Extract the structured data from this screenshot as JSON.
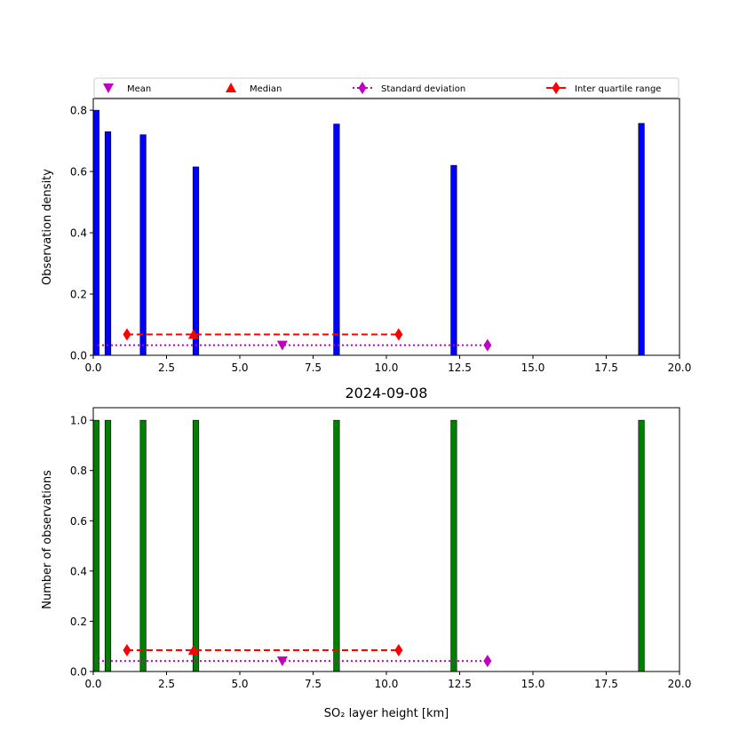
{
  "figure": {
    "title": "2024-09-08",
    "background": "#ffffff"
  },
  "legend": {
    "placement": "top, horizontal, above upper plot",
    "entries": [
      {
        "label": "Mean",
        "marker": "triangle-down",
        "color": "#bf00bf",
        "line": "none"
      },
      {
        "label": "Median",
        "marker": "triangle-up",
        "color": "#ff0000",
        "line": "none"
      },
      {
        "label": "Standard deviation",
        "marker": "diamond",
        "color": "#bf00bf",
        "line": "dotted"
      },
      {
        "label": "Inter quartile range",
        "marker": "diamond",
        "color": "#ff0000",
        "line": "solid"
      }
    ]
  },
  "chart_data": [
    {
      "type": "bar",
      "panel": "top",
      "title": "",
      "xlabel": "",
      "ylabel": "Observation density",
      "xlim": [
        0,
        20
      ],
      "ylim": [
        0,
        0.838
      ],
      "xticks": [
        "0.0",
        "2.5",
        "5.0",
        "7.5",
        "10.0",
        "12.5",
        "15.0",
        "17.5",
        "20.0"
      ],
      "yticks": [
        "0.0",
        "0.2",
        "0.4",
        "0.6",
        "0.8"
      ],
      "bar_color": "#0000ff",
      "bar_width": 0.2,
      "x": [
        0.1,
        0.5,
        1.7,
        3.5,
        8.3,
        12.3,
        18.7
      ],
      "values": [
        0.8,
        0.73,
        0.72,
        0.615,
        0.755,
        0.62,
        0.757
      ],
      "stats": {
        "mean": 6.45,
        "median": 3.42,
        "std_range": [
          0.15,
          13.45
        ],
        "iqr_range": [
          1.15,
          10.42
        ],
        "std_y": 0.033,
        "iqr_y": 0.068,
        "mean_y": 0.033,
        "median_y": 0.068
      }
    },
    {
      "type": "bar",
      "panel": "bottom",
      "title": "2024-09-08",
      "xlabel": "SO₂ layer height [km]",
      "ylabel": "Number of observations",
      "xlim": [
        0,
        20
      ],
      "ylim": [
        0,
        1.05
      ],
      "xticks": [
        "0.0",
        "2.5",
        "5.0",
        "7.5",
        "10.0",
        "12.5",
        "15.0",
        "17.5",
        "20.0"
      ],
      "yticks": [
        "0.0",
        "0.2",
        "0.4",
        "0.6",
        "0.8",
        "1.0"
      ],
      "bar_color": "#008000",
      "bar_width": 0.2,
      "x": [
        0.1,
        0.5,
        1.7,
        3.5,
        8.3,
        12.3,
        18.7
      ],
      "values": [
        1,
        1,
        1,
        1,
        1,
        1,
        1
      ],
      "stats": {
        "mean": 6.45,
        "median": 3.42,
        "std_range": [
          0.15,
          13.45
        ],
        "iqr_range": [
          1.15,
          10.42
        ],
        "std_y": 0.042,
        "iqr_y": 0.085,
        "mean_y": 0.042,
        "median_y": 0.085
      }
    }
  ]
}
